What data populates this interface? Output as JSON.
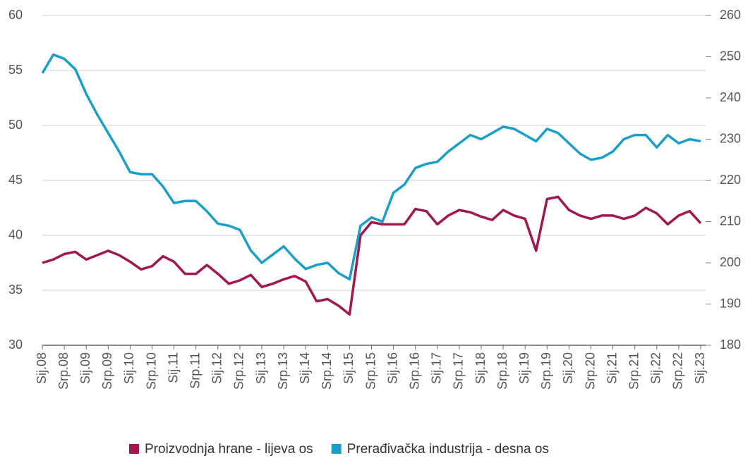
{
  "chart_data": {
    "type": "line",
    "categories": [
      "Sij.08",
      null,
      "Srp.08",
      null,
      "Sij.09",
      null,
      "Srp.09",
      null,
      "Sij.10",
      null,
      "Srp.10",
      null,
      "Sij.11",
      null,
      "Srp.11",
      null,
      "Sij.12",
      null,
      "Srp.12",
      null,
      "Sij.13",
      null,
      "Srp.13",
      null,
      "Sij.14",
      null,
      "Srp.14",
      null,
      "Sij.15",
      null,
      "Srp.15",
      null,
      "Sij.16",
      null,
      "Srp.16",
      null,
      "Sij.17",
      null,
      "Srp.17",
      null,
      "Sij.18",
      null,
      "Srp.18",
      null,
      "Sij.19",
      null,
      "Srp.19",
      null,
      "Sij.20",
      null,
      "Srp.20",
      null,
      "Sij.21",
      null,
      "Srp.21",
      null,
      "Sij.22",
      null,
      "Srp.22",
      null,
      "Sij.23"
    ],
    "series": [
      {
        "name": "Proizvodnja hrane - lijeva os",
        "color": "#a0184f",
        "axis": "y",
        "values": [
          37.5,
          37.8,
          38.3,
          38.5,
          37.8,
          38.2,
          38.6,
          38.2,
          37.6,
          36.9,
          37.2,
          38.1,
          37.6,
          36.5,
          36.5,
          37.3,
          36.5,
          35.6,
          35.9,
          36.4,
          35.3,
          35.6,
          36.0,
          36.3,
          35.8,
          34.0,
          34.2,
          33.6,
          32.8,
          40.0,
          41.2,
          41.0,
          41.0,
          41.0,
          42.4,
          42.2,
          41.0,
          41.8,
          42.3,
          42.1,
          41.7,
          41.4,
          42.3,
          41.8,
          41.5,
          38.6,
          43.3,
          43.5,
          42.3,
          41.8,
          41.5,
          41.8,
          41.8,
          41.5,
          41.8,
          42.5,
          42.0,
          41.0,
          41.8,
          42.2,
          41.1
        ]
      },
      {
        "name": "Prerađivačka industrija - desna os",
        "color": "#1a9fc9",
        "axis": "y2",
        "values": [
          246,
          250.5,
          249.5,
          247,
          241,
          236,
          231.5,
          227,
          222,
          221.5,
          221.5,
          218.5,
          214.5,
          215,
          215,
          212.5,
          209.5,
          209,
          208,
          203,
          200,
          202,
          204,
          201,
          198.5,
          199.5,
          200,
          197.5,
          196,
          209,
          211,
          210,
          217,
          219,
          223,
          224,
          224.5,
          227,
          229,
          231,
          230,
          231.5,
          233,
          232.5,
          231,
          229.5,
          232.5,
          231.5,
          229,
          226.5,
          225,
          225.5,
          227,
          230,
          231,
          231,
          228,
          231,
          229,
          230,
          229.5
        ]
      }
    ],
    "ylim": [
      30,
      60
    ],
    "yticks": [
      30,
      35,
      40,
      45,
      50,
      55,
      60
    ],
    "y2lim": [
      180,
      260
    ],
    "y2ticks": [
      180,
      190,
      200,
      210,
      220,
      230,
      240,
      250,
      260
    ],
    "grid": true
  }
}
